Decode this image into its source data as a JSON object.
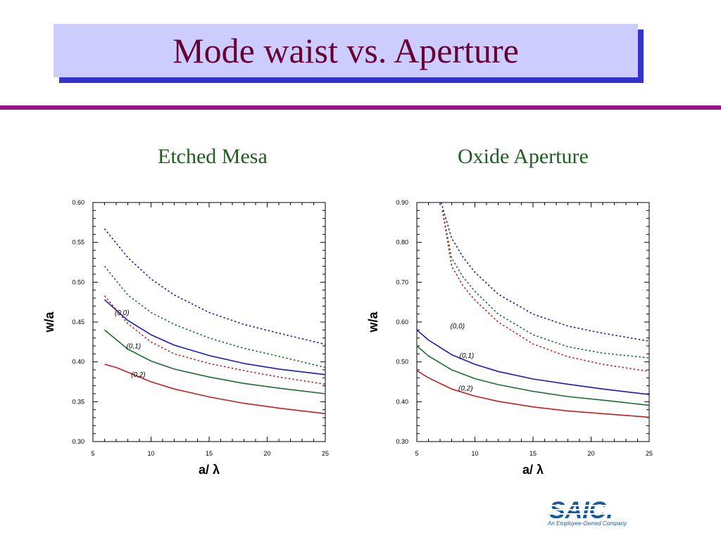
{
  "slide": {
    "title": "Mode waist vs. Aperture",
    "logo_text": "SAIC.",
    "logo_tagline": "An Employee-Owned Company"
  },
  "colors": {
    "title_bg": "#ccccff",
    "title_shadow": "#3333cc",
    "title_text": "#660033",
    "rule": "#99108a",
    "subtitle": "#1e5e1e",
    "mode_00": "#1a1ab4",
    "mode_01": "#1a6e2a",
    "mode_02": "#c42020",
    "logo": "#1a5a9a"
  },
  "chart_data": [
    {
      "type": "line",
      "title": "Etched Mesa",
      "xlabel": "a/ λ",
      "ylabel": "w/a",
      "xlim": [
        5,
        25
      ],
      "ylim": [
        0.3,
        0.6
      ],
      "xticks": [
        5,
        10,
        15,
        20,
        25
      ],
      "yticks": [
        "0.30",
        "0.35",
        "0.40",
        "0.45",
        "0.50",
        "0.55",
        "0.60"
      ],
      "grid": false,
      "series": [
        {
          "name": "(0,0)",
          "style": "solid",
          "color": "#1a1ab4",
          "x": [
            6,
            8,
            10,
            12,
            15,
            18,
            21,
            25
          ],
          "y": [
            0.478,
            0.452,
            0.434,
            0.421,
            0.408,
            0.398,
            0.391,
            0.384
          ]
        },
        {
          "name": "(0,1)",
          "style": "solid",
          "color": "#1a6e2a",
          "x": [
            6,
            8,
            10,
            12,
            15,
            18,
            21,
            25
          ],
          "y": [
            0.44,
            0.416,
            0.401,
            0.391,
            0.381,
            0.373,
            0.367,
            0.36
          ]
        },
        {
          "name": "(0,2)",
          "style": "solid",
          "color": "#c42020",
          "x": [
            6,
            7,
            8,
            10,
            12,
            15,
            18,
            21,
            25
          ],
          "y": [
            0.397,
            0.393,
            0.387,
            0.375,
            0.366,
            0.356,
            0.348,
            0.342,
            0.335
          ]
        },
        {
          "style": "dotted",
          "color": "#1a1ab4",
          "x": [
            6,
            8,
            10,
            12,
            15,
            18,
            21,
            25
          ],
          "y": [
            0.567,
            0.531,
            0.504,
            0.484,
            0.462,
            0.447,
            0.436,
            0.422
          ]
        },
        {
          "style": "dotted",
          "color": "#1a6e2a",
          "x": [
            6,
            8,
            10,
            12,
            15,
            18,
            21,
            25
          ],
          "y": [
            0.52,
            0.484,
            0.462,
            0.447,
            0.43,
            0.417,
            0.407,
            0.393
          ]
        },
        {
          "style": "dotted",
          "color": "#c42020",
          "x": [
            6,
            8,
            10,
            12,
            15,
            18,
            21,
            25
          ],
          "y": [
            0.483,
            0.448,
            0.425,
            0.41,
            0.398,
            0.389,
            0.381,
            0.372
          ]
        }
      ],
      "annotations": [
        {
          "text": "(0,0)",
          "x": 7.5,
          "y": 0.459
        },
        {
          "text": "(0,1)",
          "x": 8.5,
          "y": 0.417
        },
        {
          "text": "(0,2)",
          "x": 8.9,
          "y": 0.381
        }
      ]
    },
    {
      "type": "line",
      "title": "Oxide Aperture",
      "xlabel": "a/ λ",
      "ylabel": "w/a",
      "xlim": [
        5,
        25
      ],
      "ylim": [
        0.3,
        0.9
      ],
      "xticks": [
        5,
        10,
        15,
        20,
        25
      ],
      "yticks": [
        "0.30",
        "0.40",
        "0.50",
        "0.60",
        "0.70",
        "0.80",
        "0.90"
      ],
      "grid": false,
      "series": [
        {
          "name": "(0,0)",
          "style": "solid",
          "color": "#1a1ab4",
          "x": [
            5,
            6,
            8,
            10,
            12,
            15,
            18,
            21,
            25
          ],
          "y": [
            0.58,
            0.555,
            0.518,
            0.494,
            0.476,
            0.457,
            0.444,
            0.432,
            0.418
          ]
        },
        {
          "name": "(0,1)",
          "style": "solid",
          "color": "#1a6e2a",
          "x": [
            5,
            6,
            8,
            10,
            12,
            15,
            18,
            21,
            25
          ],
          "y": [
            0.54,
            0.515,
            0.48,
            0.458,
            0.443,
            0.426,
            0.413,
            0.404,
            0.391
          ]
        },
        {
          "name": "(0,2)",
          "style": "solid",
          "color": "#c42020",
          "x": [
            5,
            6,
            8,
            10,
            12,
            15,
            18,
            21,
            25
          ],
          "y": [
            0.478,
            0.46,
            0.432,
            0.414,
            0.401,
            0.387,
            0.377,
            0.37,
            0.361
          ]
        },
        {
          "style": "dotted",
          "color": "#1a1ab4",
          "x": [
            7.1,
            8,
            9,
            10,
            12,
            15,
            18,
            21,
            25
          ],
          "y": [
            0.9,
            0.81,
            0.762,
            0.725,
            0.67,
            0.62,
            0.59,
            0.572,
            0.552
          ]
        },
        {
          "style": "dotted",
          "color": "#1a6e2a",
          "x": [
            7.2,
            8,
            9,
            10,
            12,
            15,
            18,
            21,
            25
          ],
          "y": [
            0.88,
            0.76,
            0.712,
            0.677,
            0.62,
            0.568,
            0.538,
            0.522,
            0.51
          ]
        },
        {
          "style": "dotted",
          "color": "#c42020",
          "x": [
            7.2,
            8,
            9,
            10,
            12,
            15,
            18,
            21,
            25
          ],
          "y": [
            0.88,
            0.74,
            0.69,
            0.655,
            0.6,
            0.545,
            0.513,
            0.494,
            0.476
          ]
        }
      ],
      "annotations": [
        {
          "text": "(0,0)",
          "x": 8.5,
          "y": 0.584
        },
        {
          "text": "(0,1)",
          "x": 9.3,
          "y": 0.51
        },
        {
          "text": "(0,2)",
          "x": 9.2,
          "y": 0.428
        }
      ]
    }
  ]
}
